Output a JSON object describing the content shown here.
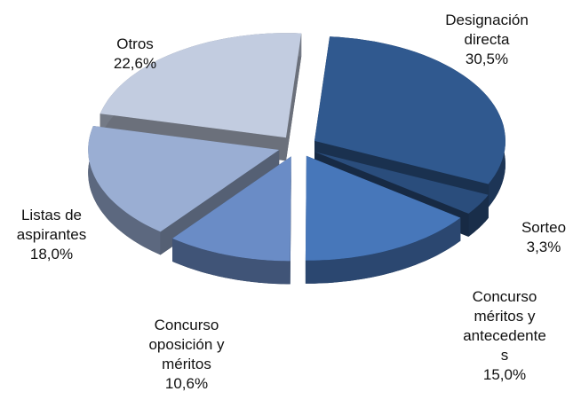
{
  "chart_data": {
    "type": "pie",
    "categories": [
      "Designación\ndirecta",
      "Sorteo",
      "Concurso\nméritos y\nantecedente\ns",
      "Concurso\noposición y\nméritos",
      "Listas de\naspirantes",
      "Otros"
    ],
    "values": [
      30.5,
      3.3,
      15.0,
      10.6,
      18.0,
      22.6
    ],
    "value_labels": [
      "30,5%",
      "3,3%",
      "15,0%",
      "10,6%",
      "18,0%",
      "22,6%"
    ],
    "colors": [
      "#30598f",
      "#2a4d7c",
      "#4777ba",
      "#6a8cc6",
      "#9aaed3",
      "#c2cce0"
    ]
  }
}
